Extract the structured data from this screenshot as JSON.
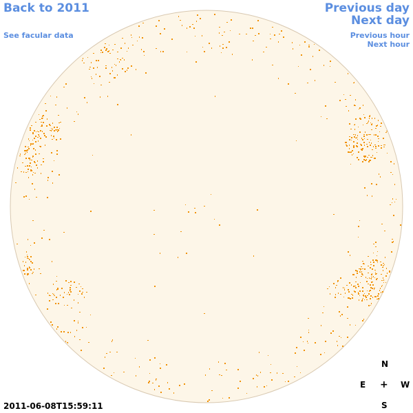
{
  "nav": {
    "back_label": "Back to 2011",
    "facular_label": "See facular data",
    "prev_day_label": "Previous day",
    "next_day_label": "Next day",
    "prev_hour_label": "Previous hour",
    "next_hour_label": "Next hour"
  },
  "timestamp": "2011-06-08T15:59:11",
  "compass": {
    "north": "N",
    "east": "E",
    "center": "+",
    "west": "W",
    "south": "S"
  },
  "colors": {
    "disk_fill": "#fdf6e8",
    "disk_edge": "#d8c8b0",
    "facula": "#f09000",
    "link": "#5b8ee0"
  },
  "icons": {
    "disk": "solar-disk-icon"
  }
}
